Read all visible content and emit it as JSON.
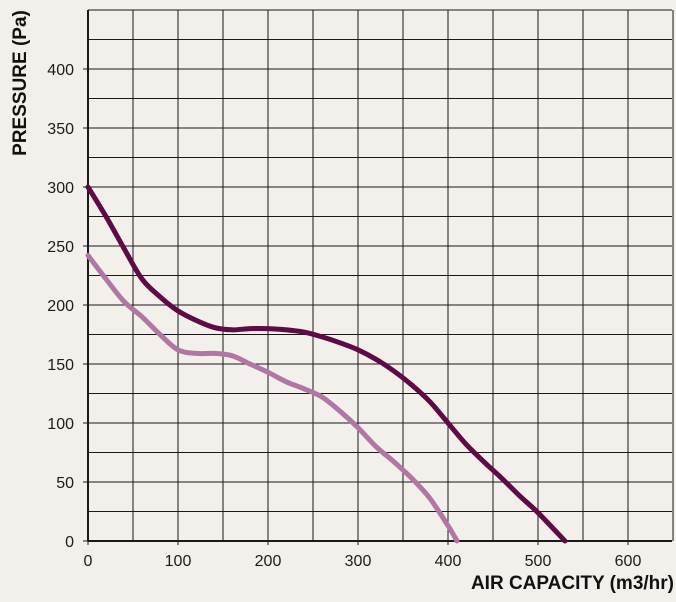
{
  "chart_data": {
    "type": "line",
    "xlabel": "AIR CAPACITY (m3/hr)",
    "ylabel": "PRESSURE (Pa)",
    "xlim": [
      0,
      650
    ],
    "ylim": [
      0,
      450
    ],
    "x_ticks": [
      0,
      100,
      200,
      300,
      400,
      500,
      600
    ],
    "y_ticks": [
      0,
      50,
      100,
      150,
      200,
      250,
      300,
      350,
      400
    ],
    "x_tick_labels": [
      "0",
      "100",
      "200",
      "300",
      "400",
      "500",
      "600"
    ],
    "y_tick_labels": [
      "0",
      "50",
      "100",
      "150",
      "200",
      "250",
      "300",
      "350",
      "400"
    ],
    "grid": true,
    "grid_step_x": 50,
    "grid_step_y": 25,
    "series": [
      {
        "color": "#5e0a45",
        "x": [
          0,
          20,
          40,
          60,
          80,
          100,
          120,
          140,
          160,
          180,
          200,
          220,
          240,
          260,
          280,
          300,
          320,
          340,
          360,
          380,
          400,
          420,
          440,
          460,
          480,
          500,
          530
        ],
        "y": [
          300,
          275,
          248,
          222,
          207,
          195,
          187,
          181,
          179,
          180,
          180,
          179,
          177,
          173,
          168,
          162,
          154,
          144,
          132,
          118,
          100,
          82,
          67,
          53,
          38,
          24,
          0
        ]
      },
      {
        "color": "#b077a3",
        "x": [
          0,
          20,
          40,
          60,
          80,
          100,
          120,
          140,
          160,
          180,
          200,
          220,
          240,
          260,
          280,
          300,
          320,
          340,
          360,
          380,
          400,
          410
        ],
        "y": [
          242,
          222,
          203,
          190,
          175,
          162,
          159,
          159,
          157,
          150,
          143,
          135,
          129,
          122,
          110,
          96,
          80,
          67,
          53,
          36,
          13,
          0
        ]
      }
    ]
  }
}
